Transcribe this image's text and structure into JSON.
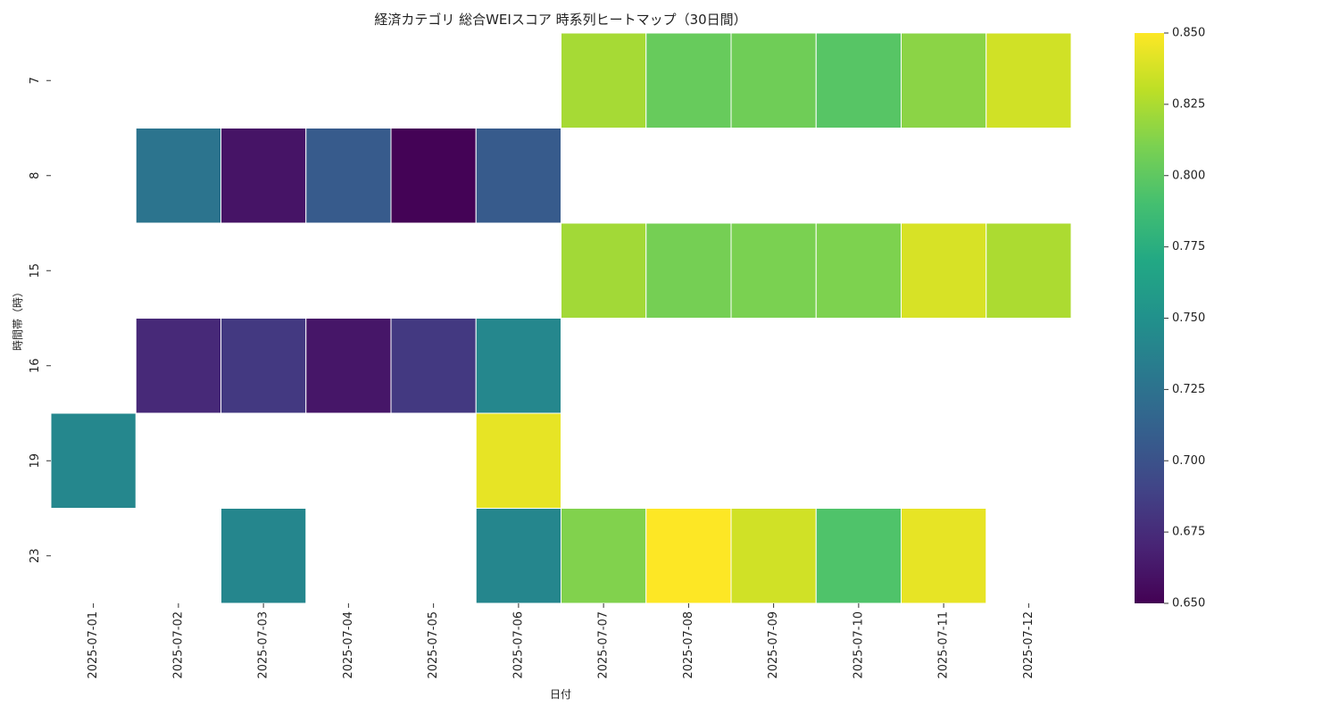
{
  "chart_data": {
    "type": "heatmap",
    "title": "経済カテゴリ 総合WEIスコア 時系列ヒートマップ（30日間）",
    "xlabel": "日付",
    "ylabel": "時間帯（時）",
    "x": [
      "2025-07-01",
      "2025-07-02",
      "2025-07-03",
      "2025-07-04",
      "2025-07-05",
      "2025-07-06",
      "2025-07-07",
      "2025-07-08",
      "2025-07-09",
      "2025-07-10",
      "2025-07-11",
      "2025-07-12"
    ],
    "y": [
      "7",
      "8",
      "15",
      "16",
      "19",
      "23"
    ],
    "values": [
      [
        null,
        null,
        null,
        null,
        null,
        null,
        0.823,
        0.803,
        0.806,
        0.797,
        0.815,
        0.836
      ],
      [
        null,
        0.727,
        0.661,
        0.707,
        0.651,
        0.707,
        null,
        null,
        null,
        null,
        null,
        null
      ],
      [
        null,
        null,
        null,
        null,
        null,
        null,
        0.822,
        0.808,
        0.81,
        0.811,
        0.838,
        0.825
      ],
      [
        null,
        0.673,
        0.683,
        0.662,
        0.683,
        0.742,
        null,
        null,
        null,
        null,
        null,
        null
      ],
      [
        0.742,
        null,
        null,
        null,
        null,
        0.843,
        null,
        null,
        null,
        null,
        null,
        null
      ],
      [
        null,
        null,
        0.741,
        null,
        null,
        0.741,
        0.812,
        0.85,
        0.836,
        0.794,
        0.843,
        null
      ]
    ],
    "colormap": "viridis",
    "colorbar": {
      "range": [
        0.65,
        0.85
      ],
      "ticks": [
        "0.650",
        "0.675",
        "0.700",
        "0.725",
        "0.750",
        "0.775",
        "0.800",
        "0.825",
        "0.850"
      ]
    }
  }
}
